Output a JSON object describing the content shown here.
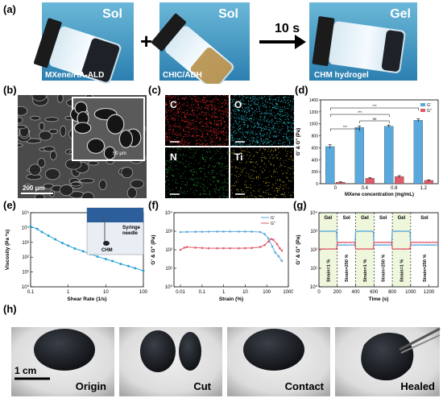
{
  "panel_labels": {
    "a": "(a)",
    "b": "(b)",
    "c": "(c)",
    "d": "(d)",
    "e": "(e)",
    "f": "(f)",
    "g": "(g)",
    "h": "(h)"
  },
  "panel_a": {
    "vial1": {
      "state": "Sol",
      "caption": "MXene/HA-ALD"
    },
    "vial2": {
      "state": "Sol",
      "caption": "CHIC/ADH"
    },
    "vial3": {
      "state": "Gel",
      "caption": "CHM hydrogel"
    },
    "plus": "+",
    "time": "10 s"
  },
  "panel_b": {
    "scale_main": "200 μm",
    "scale_inset": "50 μm"
  },
  "panel_c": {
    "elements": [
      "C",
      "O",
      "N",
      "Ti"
    ]
  },
  "panel_h": {
    "labels": [
      "Origin",
      "Cut",
      "Contact",
      "Healed"
    ],
    "scale": "1 cm"
  },
  "colors": {
    "gprime": "#5aa9dd",
    "gdouble": "#e05a6a",
    "cyan": "#2aa3d8"
  },
  "chart_data": [
    {
      "id": "d",
      "type": "bar",
      "ylabel": "G' & G\" (Pa)",
      "xlabel": "MXene concentration (mg/mL)",
      "categories": [
        "0",
        "0.4",
        "0.8",
        "1.2"
      ],
      "ylim": [
        0,
        1400
      ],
      "yticks": [
        0,
        200,
        400,
        600,
        800,
        1000,
        1200,
        1400
      ],
      "series": [
        {
          "name": "G'",
          "values": [
            620,
            940,
            960,
            1060
          ],
          "errors": [
            30,
            25,
            20,
            25
          ]
        },
        {
          "name": "G\"",
          "values": [
            25,
            90,
            120,
            55
          ],
          "errors": [
            8,
            12,
            15,
            10
          ]
        }
      ],
      "significance": [
        {
          "from": 0,
          "to": 2,
          "label": "***"
        },
        {
          "from": 0,
          "to": 3,
          "label": "***"
        },
        {
          "from": 1,
          "to": 2,
          "label": "ns"
        },
        {
          "from": 0,
          "to": 1,
          "label": "***"
        }
      ]
    },
    {
      "id": "e",
      "type": "line",
      "scale": "log-log",
      "xlabel": "Shear Rate (1/s)",
      "ylabel": "Viscosity (Pa *s)",
      "xticks": [
        0.1,
        1,
        10,
        100
      ],
      "xticklabels": [
        "0.1",
        "1",
        "10",
        "100"
      ],
      "yticks": [
        1,
        10,
        100,
        1000,
        10000,
        100000
      ],
      "yticklabels": [
        "10⁰",
        "10¹",
        "10²",
        "10³",
        "10⁴",
        "10⁵"
      ],
      "inset_labels": [
        "Syringe",
        "needle",
        "CHM"
      ],
      "x": [
        0.1,
        0.15,
        0.2,
        0.3,
        0.45,
        0.7,
        1,
        1.5,
        2.5,
        4,
        6,
        10,
        15,
        25,
        40,
        60,
        100
      ],
      "y": [
        12000,
        8000,
        5000,
        2800,
        1600,
        900,
        600,
        380,
        250,
        160,
        110,
        75,
        55,
        35,
        25,
        18,
        12
      ]
    },
    {
      "id": "f",
      "type": "line",
      "scale": "log-log",
      "xlabel": "Strain (%)",
      "ylabel": "G' & G\" (Pa)",
      "xticks": [
        0.01,
        0.1,
        1,
        10,
        100,
        1000
      ],
      "xticklabels": [
        "0.01",
        "0.1",
        "1",
        "10",
        "100",
        "1000"
      ],
      "yticks": [
        1,
        10,
        100,
        1000,
        10000
      ],
      "yticklabels": [
        "10⁰",
        "10¹",
        "10²",
        "10³",
        "10⁴"
      ],
      "series": [
        {
          "name": "G'",
          "x": [
            0.01,
            0.02,
            0.05,
            0.1,
            0.2,
            0.5,
            1,
            2,
            5,
            10,
            20,
            50,
            80,
            120,
            180,
            250,
            350,
            500
          ],
          "y": [
            900,
            920,
            930,
            940,
            950,
            960,
            960,
            960,
            960,
            960,
            950,
            900,
            700,
            400,
            150,
            70,
            45,
            25
          ]
        },
        {
          "name": "G\"",
          "x": [
            0.01,
            0.015,
            0.02,
            0.05,
            0.1,
            0.2,
            0.5,
            1,
            2,
            5,
            10,
            20,
            50,
            80,
            120,
            160,
            200,
            300,
            400,
            500
          ],
          "y": [
            100,
            130,
            140,
            130,
            125,
            120,
            120,
            120,
            120,
            120,
            122,
            125,
            140,
            180,
            280,
            380,
            350,
            200,
            120,
            90
          ]
        }
      ]
    },
    {
      "id": "g",
      "type": "line",
      "scale": "linear-log",
      "xlabel": "Time (s)",
      "ylabel": "G' & G\" (Pa)",
      "xlim": [
        0,
        1300
      ],
      "xticks": [
        0,
        200,
        400,
        600,
        800,
        1000,
        1200
      ],
      "yticks": [
        1,
        10,
        100,
        1000,
        10000
      ],
      "yticklabels": [
        "10⁰",
        "10¹",
        "10²",
        "10³",
        "10⁴"
      ],
      "regions": [
        {
          "from": 0,
          "to": 200,
          "label": "Gel",
          "strain": "Strain=1 %"
        },
        {
          "from": 200,
          "to": 400,
          "label": "Sol",
          "strain": "Strain=250 %"
        },
        {
          "from": 400,
          "to": 600,
          "label": "Gel",
          "strain": "Strain=1 %"
        },
        {
          "from": 600,
          "to": 800,
          "label": "Sol",
          "strain": "Strain=250 %"
        },
        {
          "from": 800,
          "to": 1000,
          "label": "Gel",
          "strain": "Strain=1 %"
        },
        {
          "from": 1000,
          "to": 1300,
          "label": "Sol",
          "strain": "Strain=250 %"
        }
      ],
      "series": [
        {
          "name": "G'",
          "gel": 1000,
          "sol": 180
        },
        {
          "name": "G\"",
          "gel": 110,
          "sol": 250
        }
      ]
    }
  ]
}
